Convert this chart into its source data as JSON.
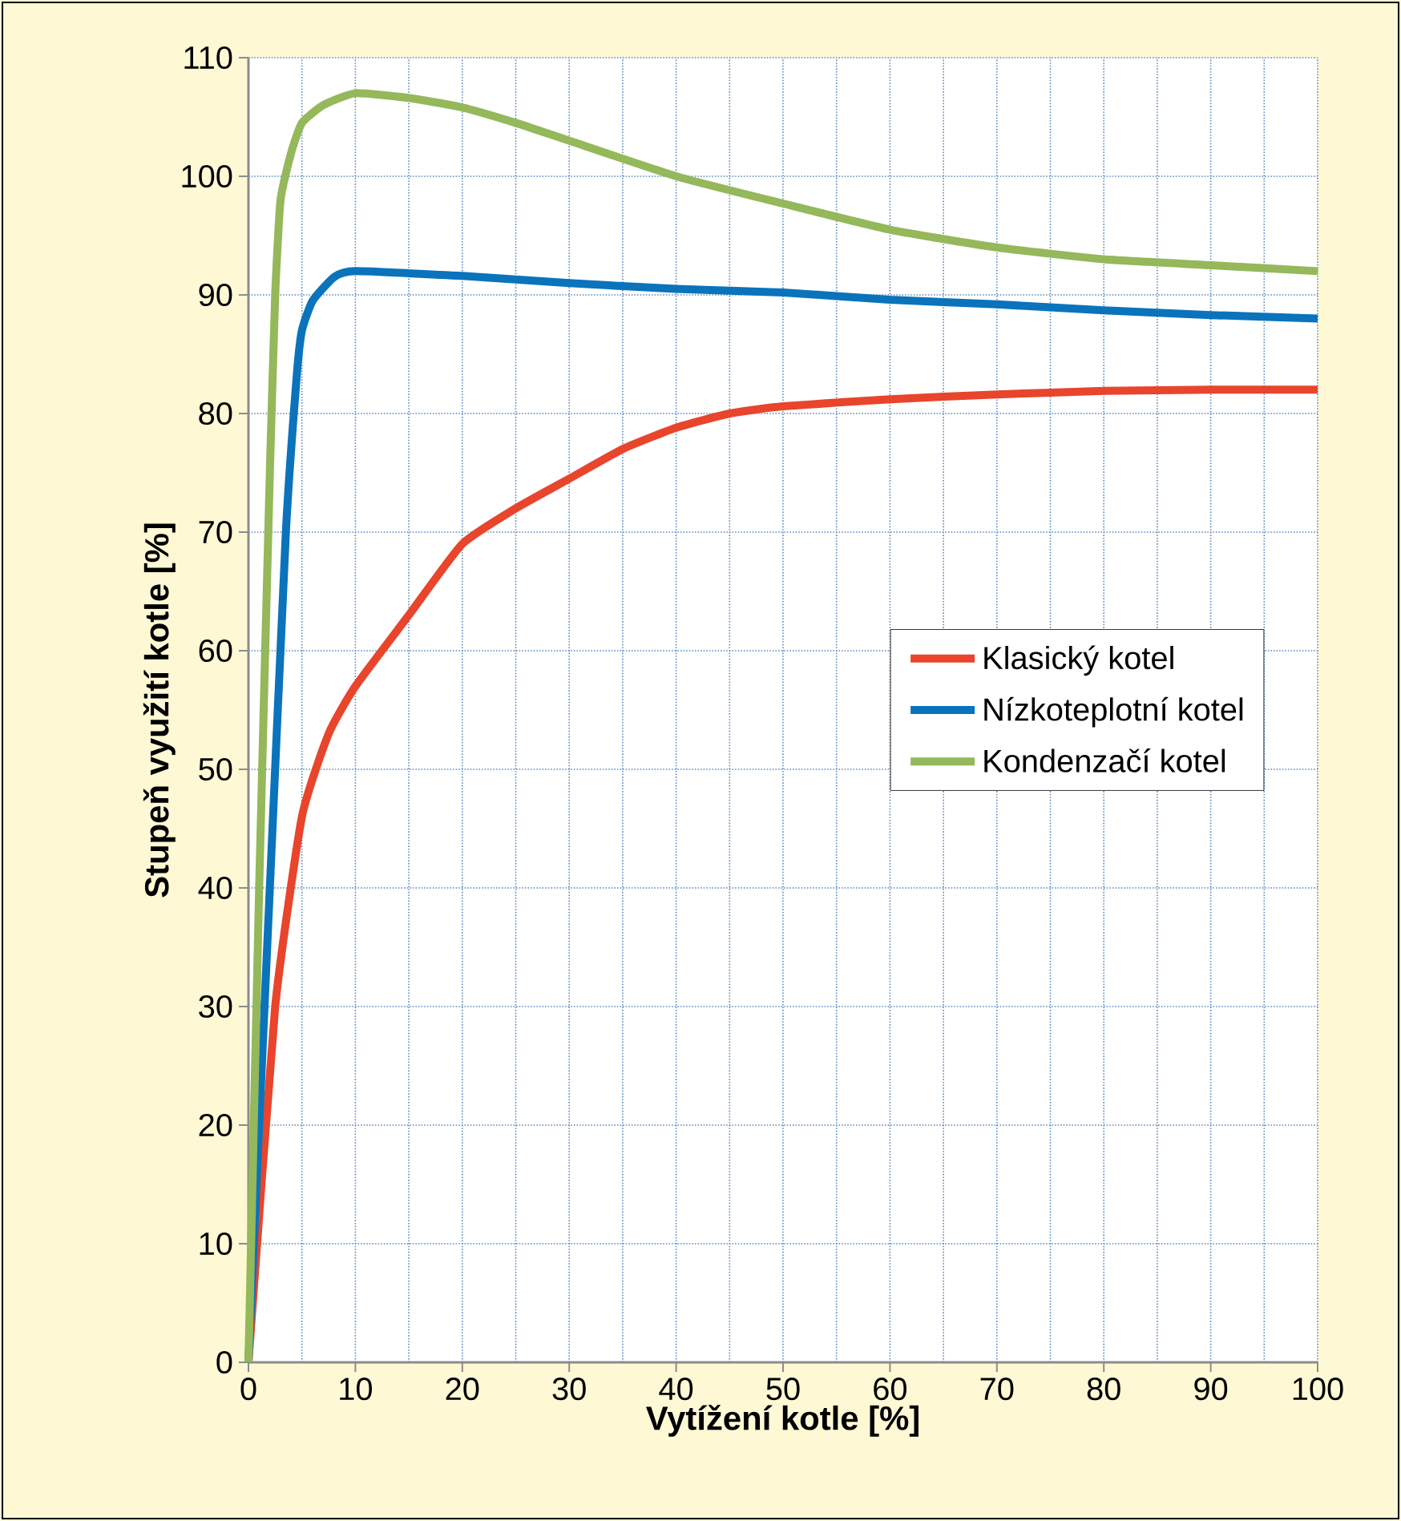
{
  "chart_data": {
    "type": "line",
    "xlabel": "Vytížení kotle [%]",
    "ylabel": "Stupeň využití kotle [%]",
    "xlim": [
      0,
      100
    ],
    "ylim": [
      0,
      110
    ],
    "xticks": [
      0,
      10,
      20,
      30,
      40,
      50,
      60,
      70,
      80,
      90,
      100
    ],
    "yticks": [
      0,
      10,
      20,
      30,
      40,
      50,
      60,
      70,
      80,
      90,
      100,
      110
    ],
    "grid": true,
    "legend": "right",
    "marker": "none",
    "line_style": "solid",
    "series": [
      {
        "name": "Klasický kotel",
        "color": "#e8452c",
        "x": [
          0,
          2.5,
          5,
          7.5,
          10,
          15,
          20,
          25,
          30,
          35,
          40,
          45,
          50,
          60,
          70,
          80,
          90,
          100
        ],
        "values": [
          0,
          30,
          46,
          53,
          57,
          63,
          69,
          72,
          74.5,
          77,
          78.8,
          80,
          80.6,
          81.2,
          81.6,
          81.9,
          82,
          82
        ]
      },
      {
        "name": "Nízkoteplotní kotel",
        "color": "#0a73bb",
        "x": [
          0,
          2,
          3.5,
          4.5,
          5,
          6,
          8,
          10,
          20,
          30,
          40,
          50,
          60,
          70,
          80,
          90,
          100
        ],
        "values": [
          0,
          40,
          70,
          83,
          87,
          89.5,
          91.5,
          92,
          91.6,
          91,
          90.5,
          90.2,
          89.6,
          89.2,
          88.7,
          88.3,
          88
        ]
      },
      {
        "name": "Kondenzačí kotel",
        "color": "#94b85a",
        "x": [
          0,
          1,
          2,
          2.5,
          3,
          4,
          5,
          7,
          10,
          15,
          20,
          25,
          30,
          40,
          50,
          60,
          70,
          80,
          90,
          100
        ],
        "values": [
          0,
          40,
          75,
          90,
          98,
          102,
          104.5,
          106,
          107,
          106.6,
          105.8,
          104.5,
          103,
          100,
          97.7,
          95.5,
          94,
          93,
          92.5,
          92
        ]
      }
    ]
  }
}
